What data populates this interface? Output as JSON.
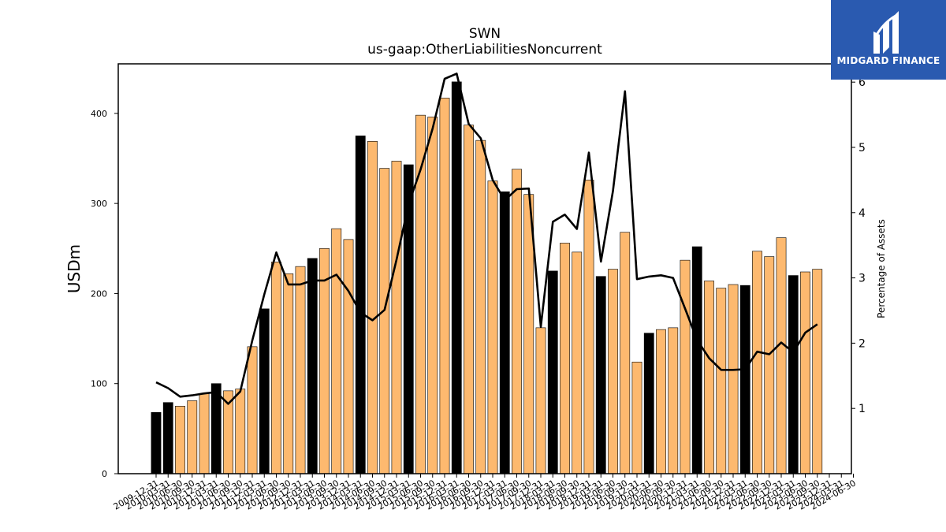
{
  "chart_data": {
    "type": "bar",
    "title": "SWN",
    "subtitle": "us-gaap:OtherLiabilitiesNoncurrent",
    "ylabel": "USDm",
    "y2label": "Percentage of Assets",
    "ylim": [
      0,
      455
    ],
    "y2lim": [
      0,
      6.28
    ],
    "yticks": [
      0,
      100,
      200,
      300,
      400
    ],
    "y2ticks": [
      1,
      2,
      3,
      4,
      5,
      6
    ],
    "bar_colors": {
      "fy": "#000000",
      "quarter": "#fdb96f"
    },
    "line_color": "#000000",
    "categories": [
      "2009-12-31",
      "2010-03-31",
      "2010-06-30",
      "2010-09-30",
      "2010-12-31",
      "2011-03-31",
      "2011-06-30",
      "2011-09-30",
      "2011-12-31",
      "2012-03-31",
      "2012-06-30",
      "2012-09-30",
      "2012-12-31",
      "2013-03-31",
      "2013-06-30",
      "2013-09-30",
      "2013-12-31",
      "2014-03-31",
      "2014-06-30",
      "2014-09-30",
      "2014-12-31",
      "2015-03-31",
      "2015-06-30",
      "2015-09-30",
      "2015-12-31",
      "2016-03-31",
      "2016-06-30",
      "2016-09-30",
      "2016-12-31",
      "2017-03-31",
      "2017-06-30",
      "2017-09-30",
      "2017-12-31",
      "2018-03-31",
      "2018-06-30",
      "2018-09-30",
      "2018-12-31",
      "2019-03-31",
      "2019-06-30",
      "2019-09-30",
      "2019-12-31",
      "2020-03-31",
      "2020-06-30",
      "2020-09-30",
      "2020-12-31",
      "2021-03-31",
      "2021-06-30",
      "2021-09-30",
      "2021-12-31",
      "2022-03-31",
      "2022-06-30",
      "2022-09-30",
      "2022-12-31",
      "2023-03-31",
      "2023-06-30",
      "2023-09-30",
      "2023-12-31",
      "2024-03-31",
      "2024-06-30"
    ],
    "xtick_labels": [
      "2009-12-31",
      "2010-03-31",
      "2010-06-30",
      "2010-09-30",
      "2010-12-31",
      "2011-03-31",
      "2011-06-30",
      "2011-09-30",
      "2011-12-31",
      "2012-03-31",
      "2012-06-30",
      "2012-09-30",
      "2012-12-31",
      "2013-03-31",
      "2013-06-30",
      "2013-09-30",
      "2013-12-31",
      "2014-03-31",
      "2014-06-30",
      "2014-09-30",
      "2014-12-31",
      "2015-03-31",
      "2015-06-30",
      "2015-09-30",
      "2015-12-31",
      "2016-03-31",
      "2016-06-30",
      "2016-09-30",
      "2016-12-31",
      "2017-03-31",
      "2017-06-30",
      "2017-09-30",
      "2017-12-31",
      "2018-03-31",
      "2018-06-30",
      "2018-09-30",
      "2018-12-31",
      "2019-03-31",
      "2019-06-30",
      "2019-09-30",
      "2019-12-31",
      "2020-03-31",
      "2020-06-30",
      "2020-09-30",
      "2020-12-31",
      "2021-03-31",
      "2021-06-30",
      "2021-09-30",
      "2021-12-31",
      "2022-03-31",
      "2022-06-30",
      "2022-09-30",
      "2022-12-31",
      "2023-03-31",
      "2023-06-30",
      "2023-09-30",
      "2023-12-31",
      "2024-03-31",
      "2024-06-30"
    ],
    "fiscal_year_end": [
      true,
      true,
      false,
      false,
      false,
      true,
      false,
      false,
      false,
      true,
      false,
      false,
      false,
      true,
      false,
      false,
      false,
      true,
      false,
      false,
      false,
      true,
      false,
      false,
      false,
      true,
      false,
      false,
      false,
      true,
      false,
      false,
      false,
      true,
      false,
      false,
      false,
      true,
      false,
      false,
      false,
      true,
      false,
      false,
      false,
      true,
      false,
      false,
      false,
      true,
      false,
      false,
      false,
      true,
      false,
      false,
      false,
      true,
      false
    ],
    "series": [
      {
        "type": "bar",
        "values": [
          68,
          79,
          75,
          81,
          89,
          100,
          92,
          94,
          141,
          183,
          235,
          222,
          230,
          239,
          250,
          272,
          260,
          375,
          369,
          339,
          347,
          343,
          398,
          396,
          417,
          435,
          387,
          370,
          325,
          313,
          338,
          310,
          162,
          225,
          256,
          246,
          326,
          219,
          227,
          268,
          124,
          156,
          160,
          162,
          237,
          252,
          214,
          206,
          210,
          209,
          247,
          241,
          262,
          220,
          224,
          227,
          0,
          0,
          0
        ]
      },
      {
        "type": "line",
        "values": [
          1.4,
          1.31,
          1.18,
          1.2,
          1.23,
          1.25,
          1.07,
          1.26,
          2.04,
          2.75,
          3.39,
          2.9,
          2.9,
          2.96,
          2.96,
          3.05,
          2.8,
          2.47,
          2.35,
          2.51,
          3.28,
          4.13,
          4.66,
          5.29,
          6.05,
          6.13,
          5.36,
          5.14,
          4.5,
          4.19,
          4.36,
          4.37,
          2.25,
          3.86,
          3.97,
          3.75,
          4.92,
          3.25,
          4.33,
          5.86,
          2.98,
          3.02,
          3.04,
          3.0,
          2.53,
          2.05,
          1.77,
          1.59,
          1.59,
          1.6,
          1.87,
          1.83,
          2.01,
          1.86,
          2.16,
          2.29,
          null,
          null,
          null
        ]
      }
    ],
    "grid": false,
    "legend": "none"
  },
  "brand": {
    "name": "MIDGARD FINANCE",
    "background": "#2a5ab0"
  }
}
